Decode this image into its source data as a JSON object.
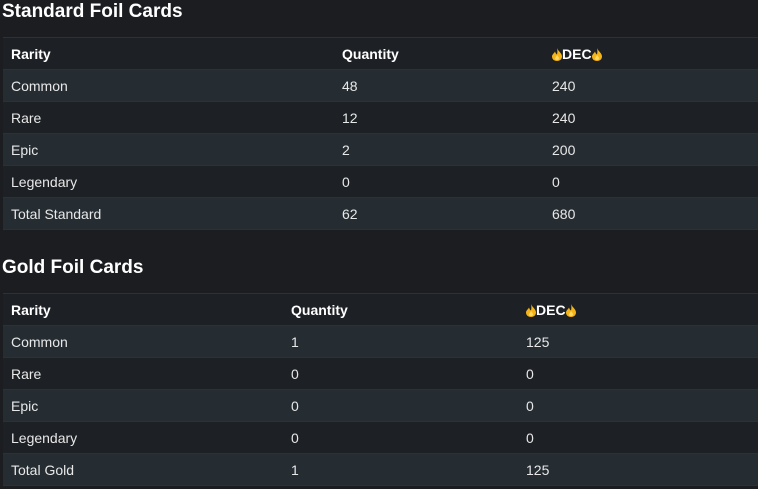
{
  "sections": [
    {
      "title": "Standard Foil Cards",
      "header": [
        "Rarity",
        "Quantity",
        "DEC"
      ],
      "rows": [
        [
          "Common",
          48,
          240
        ],
        [
          "Rare",
          12,
          240
        ],
        [
          "Epic",
          2,
          200
        ],
        [
          "Legendary",
          0,
          0
        ],
        [
          "Total Standard",
          62,
          680
        ]
      ]
    },
    {
      "title": "Gold Foil Cards",
      "header": [
        "Rarity",
        "Quantity",
        "DEC"
      ],
      "rows": [
        [
          "Common",
          1,
          125
        ],
        [
          "Rare",
          0,
          0
        ],
        [
          "Epic",
          0,
          0
        ],
        [
          "Legendary",
          0,
          0
        ],
        [
          "Total Gold",
          1,
          125
        ]
      ]
    }
  ]
}
